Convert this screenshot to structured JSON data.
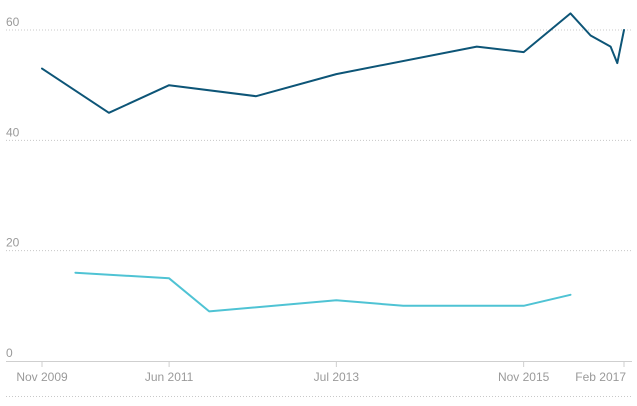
{
  "chart_data": {
    "type": "line",
    "title": "",
    "xlabel": "",
    "ylabel": "",
    "ylim": [
      0,
      60
    ],
    "y_ticks": [
      0,
      20,
      40,
      60
    ],
    "x_ticks": [
      "Nov 2009",
      "Jun 2011",
      "Jul 2013",
      "Nov 2015",
      "Feb 2017"
    ],
    "grid": true,
    "legend": "none",
    "series": [
      {
        "color": "#0d5577",
        "points": [
          {
            "x": "Nov 2009",
            "y": 53
          },
          {
            "x": "Sep 2010",
            "y": 45
          },
          {
            "x": "Jun 2011",
            "y": 50
          },
          {
            "x": "Jul 2012",
            "y": 48
          },
          {
            "x": "Jul 2013",
            "y": 52
          },
          {
            "x": "Apr 2015",
            "y": 57
          },
          {
            "x": "Nov 2015",
            "y": 56
          },
          {
            "x": "Jun 2016",
            "y": 63
          },
          {
            "x": "Sep 2016",
            "y": 59
          },
          {
            "x": "Dec 2016",
            "y": 57
          },
          {
            "x": "Jan 2017",
            "y": 54
          },
          {
            "x": "Feb 2017",
            "y": 60
          }
        ]
      },
      {
        "color": "#4fc3d4",
        "points": [
          {
            "x": "Apr 2010",
            "y": 16
          },
          {
            "x": "Jun 2011",
            "y": 15
          },
          {
            "x": "Dec 2011",
            "y": 9
          },
          {
            "x": "Jul 2013",
            "y": 11
          },
          {
            "x": "May 2014",
            "y": 10
          },
          {
            "x": "Nov 2015",
            "y": 10
          },
          {
            "x": "Jun 2016",
            "y": 12
          }
        ]
      }
    ]
  }
}
